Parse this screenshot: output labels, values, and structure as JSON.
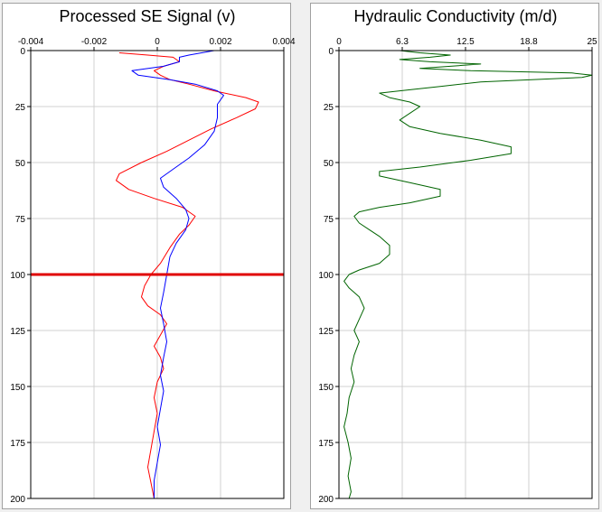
{
  "chart_data": [
    {
      "type": "line",
      "title": "Processed SE Signal (v)",
      "x_ticks": [
        "-0.004",
        "-0.002",
        "0",
        "0.002",
        "0.004"
      ],
      "y_ticks": [
        "0",
        "25",
        "50",
        "75",
        "100",
        "125",
        "150",
        "175",
        "200"
      ],
      "xlim": [
        -0.004,
        0.004
      ],
      "ylim": [
        0,
        200
      ],
      "y_inverted": true,
      "grid": true,
      "marker_line": {
        "depth": 100,
        "color": "#e00000"
      },
      "series": [
        {
          "color": "#ff0000",
          "points": [
            [
              -0.0012,
              1
            ],
            [
              -0.0003,
              2
            ],
            [
              0.0005,
              3
            ],
            [
              0.0007,
              5
            ],
            [
              0.0002,
              7
            ],
            [
              -0.0001,
              9
            ],
            [
              0.0001,
              11
            ],
            [
              0.0004,
              13
            ],
            [
              0.001,
              15
            ],
            [
              0.0018,
              18
            ],
            [
              0.0028,
              21
            ],
            [
              0.0032,
              23
            ],
            [
              0.0031,
              26
            ],
            [
              0.0025,
              30
            ],
            [
              0.0017,
              35
            ],
            [
              0.001,
              40
            ],
            [
              0.0003,
              45
            ],
            [
              -0.0005,
              50
            ],
            [
              -0.0012,
              55
            ],
            [
              -0.0013,
              58
            ],
            [
              -0.0009,
              62
            ],
            [
              -0.0001,
              66
            ],
            [
              0.0008,
              70
            ],
            [
              0.0012,
              74
            ],
            [
              0.001,
              78
            ],
            [
              0.0007,
              82
            ],
            [
              0.0004,
              88
            ],
            [
              0.0001,
              95
            ],
            [
              -0.0002,
              100
            ],
            [
              -0.0004,
              105
            ],
            [
              -0.0005,
              110
            ],
            [
              -0.0003,
              114
            ],
            [
              0.0001,
              118
            ],
            [
              0.0003,
              122
            ],
            [
              0.0001,
              127
            ],
            [
              -0.0001,
              132
            ],
            [
              0.0001,
              137
            ],
            [
              0.0002,
              142
            ],
            [
              0.0,
              148
            ],
            [
              -0.0001,
              155
            ],
            [
              0.0,
              162
            ],
            [
              -0.0001,
              170
            ],
            [
              -0.0002,
              178
            ],
            [
              -0.0003,
              186
            ],
            [
              -0.0002,
              193
            ],
            [
              -0.0001,
              200
            ]
          ]
        },
        {
          "color": "#0000ff",
          "points": [
            [
              0.0018,
              0
            ],
            [
              0.001,
              2
            ],
            [
              0.0007,
              3
            ],
            [
              0.0007,
              5
            ],
            [
              0.0002,
              7
            ],
            [
              -0.0008,
              9
            ],
            [
              -0.0006,
              11
            ],
            [
              0.0004,
              13
            ],
            [
              0.0012,
              15
            ],
            [
              0.0019,
              18
            ],
            [
              0.0021,
              20
            ],
            [
              0.0019,
              24
            ],
            [
              0.0019,
              30
            ],
            [
              0.0018,
              36
            ],
            [
              0.0015,
              42
            ],
            [
              0.001,
              48
            ],
            [
              0.0005,
              53
            ],
            [
              0.0001,
              57
            ],
            [
              0.0002,
              61
            ],
            [
              0.0006,
              66
            ],
            [
              0.0009,
              71
            ],
            [
              0.001,
              75
            ],
            [
              0.0009,
              80
            ],
            [
              0.0006,
              86
            ],
            [
              0.0004,
              92
            ],
            [
              0.0003,
              100
            ],
            [
              0.0002,
              108
            ],
            [
              0.0001,
              115
            ],
            [
              0.0002,
              122
            ],
            [
              0.0003,
              130
            ],
            [
              0.0002,
              137
            ],
            [
              0.0001,
              145
            ],
            [
              0.0002,
              152
            ],
            [
              0.0001,
              160
            ],
            [
              0.0,
              168
            ],
            [
              0.0001,
              176
            ],
            [
              0.0,
              184
            ],
            [
              -0.0001,
              192
            ],
            [
              -0.0001,
              200
            ]
          ]
        }
      ]
    },
    {
      "type": "line",
      "title": "Hydraulic Conductivity (m/d)",
      "x_ticks": [
        "0",
        "6.3",
        "12.5",
        "18.8",
        "25"
      ],
      "y_ticks": [
        "0",
        "25",
        "50",
        "75",
        "100",
        "125",
        "150",
        "175",
        "200"
      ],
      "xlim": [
        0,
        25
      ],
      "ylim": [
        0,
        200
      ],
      "y_inverted": true,
      "grid": true,
      "series": [
        {
          "color": "#006400",
          "points": [
            [
              6,
              0
            ],
            [
              8,
              1
            ],
            [
              11,
              2
            ],
            [
              9,
              3
            ],
            [
              6,
              4
            ],
            [
              9,
              5
            ],
            [
              14,
              6
            ],
            [
              11,
              7
            ],
            [
              8,
              8
            ],
            [
              13,
              9
            ],
            [
              23,
              10
            ],
            [
              25,
              11
            ],
            [
              24,
              12
            ],
            [
              14,
              14
            ],
            [
              10,
              16
            ],
            [
              6,
              18
            ],
            [
              4,
              19
            ],
            [
              5,
              21
            ],
            [
              7,
              23
            ],
            [
              8,
              25
            ],
            [
              7,
              28
            ],
            [
              6,
              31
            ],
            [
              7,
              34
            ],
            [
              10,
              37
            ],
            [
              14,
              40
            ],
            [
              17,
              43
            ],
            [
              17,
              46
            ],
            [
              13,
              49
            ],
            [
              8,
              52
            ],
            [
              4,
              54
            ],
            [
              4,
              56
            ],
            [
              7,
              59
            ],
            [
              10,
              62
            ],
            [
              10,
              65
            ],
            [
              7,
              68
            ],
            [
              4,
              70
            ],
            [
              2,
              72
            ],
            [
              1.5,
              74
            ],
            [
              2,
              77
            ],
            [
              3,
              80
            ],
            [
              4,
              83
            ],
            [
              5,
              87
            ],
            [
              5,
              91
            ],
            [
              4,
              95
            ],
            [
              2,
              98
            ],
            [
              1,
              100
            ],
            [
              0.5,
              103
            ],
            [
              1,
              106
            ],
            [
              2,
              110
            ],
            [
              2.5,
              115
            ],
            [
              2,
              120
            ],
            [
              1.5,
              125
            ],
            [
              2,
              130
            ],
            [
              1.5,
              136
            ],
            [
              1.2,
              142
            ],
            [
              1.5,
              148
            ],
            [
              1,
              155
            ],
            [
              0.8,
              162
            ],
            [
              0.5,
              168
            ],
            [
              0.9,
              175
            ],
            [
              1.2,
              182
            ],
            [
              0.9,
              190
            ],
            [
              1.2,
              197
            ],
            [
              1,
              200
            ]
          ]
        }
      ]
    }
  ]
}
